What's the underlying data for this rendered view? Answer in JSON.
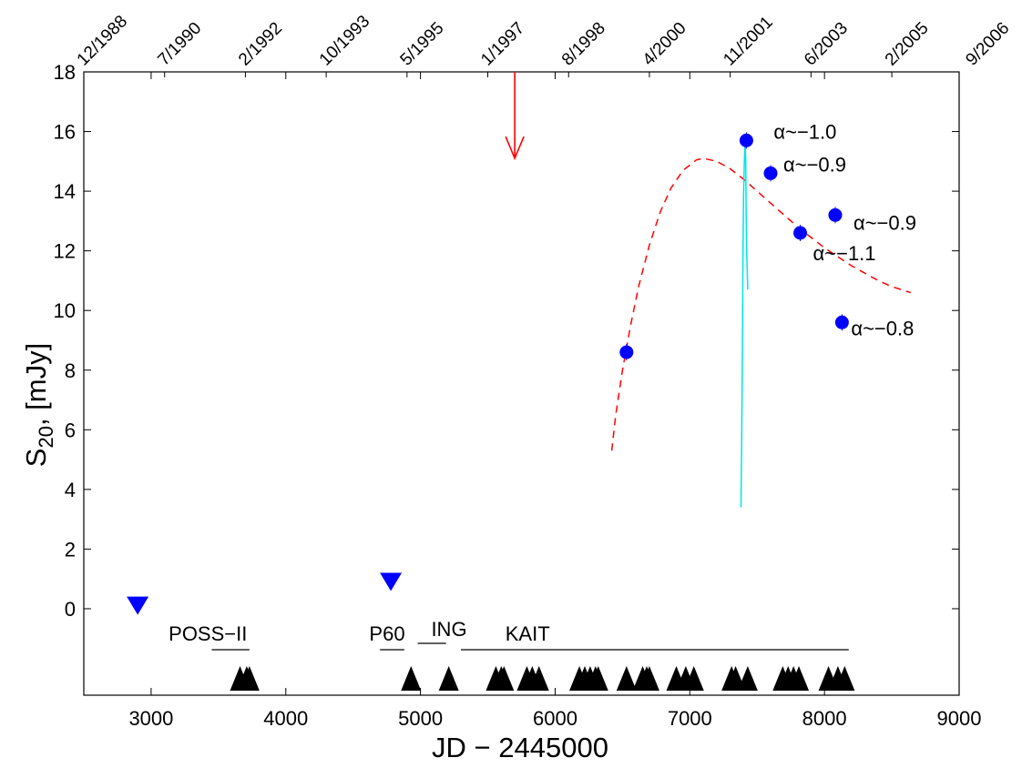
{
  "chart_data": {
    "type": "scatter",
    "xlabel": "JD − 2445000",
    "ylabel": "S",
    "ylabel_sub": "20",
    "ylabel_rest": ", [mJy]",
    "xlim": [
      2500,
      9000
    ],
    "ylim": [
      -2.9,
      18
    ],
    "x_ticks": [
      3000,
      4000,
      5000,
      6000,
      7000,
      8000,
      9000
    ],
    "y_ticks": [
      0,
      2,
      4,
      6,
      8,
      10,
      12,
      14,
      16,
      18
    ],
    "top_axis_dates": [
      {
        "label": "12/1988",
        "x": 2500
      },
      {
        "label": "7/1990",
        "x": 3100
      },
      {
        "label": "2/1992",
        "x": 3700
      },
      {
        "label": "10/1993",
        "x": 4300
      },
      {
        "label": "5/1995",
        "x": 4900
      },
      {
        "label": "1/1997",
        "x": 5500
      },
      {
        "label": "8/1998",
        "x": 6100
      },
      {
        "label": "4/2000",
        "x": 6700
      },
      {
        "label": "11/2001",
        "x": 7300
      },
      {
        "label": "6/2003",
        "x": 7900
      },
      {
        "label": "2/2005",
        "x": 8500
      },
      {
        "label": "9/2006",
        "x": 9100
      }
    ],
    "colors": {
      "detections": "#0000ff",
      "model": "#ff0000",
      "spike": "#00e5e5",
      "arrow": "#ff0000",
      "epochs": "#000000"
    },
    "detections": [
      {
        "x": 6530,
        "y": 8.6
      },
      {
        "x": 7420,
        "y": 15.7
      },
      {
        "x": 7600,
        "y": 14.6
      },
      {
        "x": 7820,
        "y": 12.6
      },
      {
        "x": 8080,
        "y": 13.2
      },
      {
        "x": 8130,
        "y": 9.6
      }
    ],
    "upper_limits": [
      {
        "x": 2900,
        "y": 0.1
      },
      {
        "x": 4780,
        "y": 0.9
      }
    ],
    "alpha_labels": [
      {
        "text": "α~−1.0",
        "x": 7420,
        "y": 15.7
      },
      {
        "text": "α~−0.9",
        "x": 7600,
        "y": 14.6
      },
      {
        "text": "α~−1.1",
        "x": 7820,
        "y": 12.6
      },
      {
        "text": "α~−0.9",
        "x": 8080,
        "y": 13.2
      },
      {
        "text": "α~−0.8",
        "x": 8130,
        "y": 9.6
      }
    ],
    "model_curve": [
      [
        6420,
        5.3
      ],
      [
        6450,
        6.5
      ],
      [
        6500,
        8.0
      ],
      [
        6560,
        9.5
      ],
      [
        6620,
        10.8
      ],
      [
        6700,
        12.2
      ],
      [
        6780,
        13.3
      ],
      [
        6860,
        14.1
      ],
      [
        6950,
        14.7
      ],
      [
        7050,
        15.05
      ],
      [
        7100,
        15.1
      ],
      [
        7200,
        15.0
      ],
      [
        7300,
        14.75
      ],
      [
        7400,
        14.4
      ],
      [
        7500,
        14.0
      ],
      [
        7600,
        13.6
      ],
      [
        7700,
        13.2
      ],
      [
        7800,
        12.8
      ],
      [
        7900,
        12.45
      ],
      [
        8000,
        12.1
      ],
      [
        8100,
        11.8
      ],
      [
        8200,
        11.5
      ],
      [
        8300,
        11.25
      ],
      [
        8400,
        11.0
      ],
      [
        8500,
        10.8
      ],
      [
        8640,
        10.6
      ]
    ],
    "spike_curve": [
      [
        7380,
        3.4
      ],
      [
        7385,
        5.5
      ],
      [
        7390,
        8.5
      ],
      [
        7395,
        12.0
      ],
      [
        7400,
        14.0
      ],
      [
        7405,
        15.0
      ],
      [
        7410,
        15.7
      ],
      [
        7415,
        15.0
      ],
      [
        7418,
        13.5
      ],
      [
        7422,
        12.0
      ],
      [
        7426,
        11.4
      ],
      [
        7430,
        10.7
      ]
    ],
    "arrow": {
      "x": 5700,
      "y_top": 18,
      "y_tip": 15.1
    },
    "telescopes": [
      {
        "name": "POSS−II",
        "x_label": 3130,
        "x_start": 3450,
        "x_end": 3730
      },
      {
        "name": "P60",
        "x_label": 4620,
        "x_start": 4700,
        "x_end": 4880
      },
      {
        "name": "ING",
        "x_label": 5080,
        "x_start": 4980,
        "x_end": 5190
      },
      {
        "name": "KAIT",
        "x_label": 5630,
        "x_start": 5300,
        "x_end": 8180
      }
    ],
    "observation_epochs": [
      3660,
      3710,
      3730,
      4930,
      5210,
      5560,
      5600,
      5620,
      5790,
      5830,
      5880,
      6180,
      6220,
      6260,
      6300,
      6320,
      6530,
      6650,
      6680,
      6700,
      6900,
      6970,
      7030,
      7310,
      7340,
      7430,
      7690,
      7730,
      7770,
      7810,
      8030,
      8100,
      8150
    ]
  }
}
